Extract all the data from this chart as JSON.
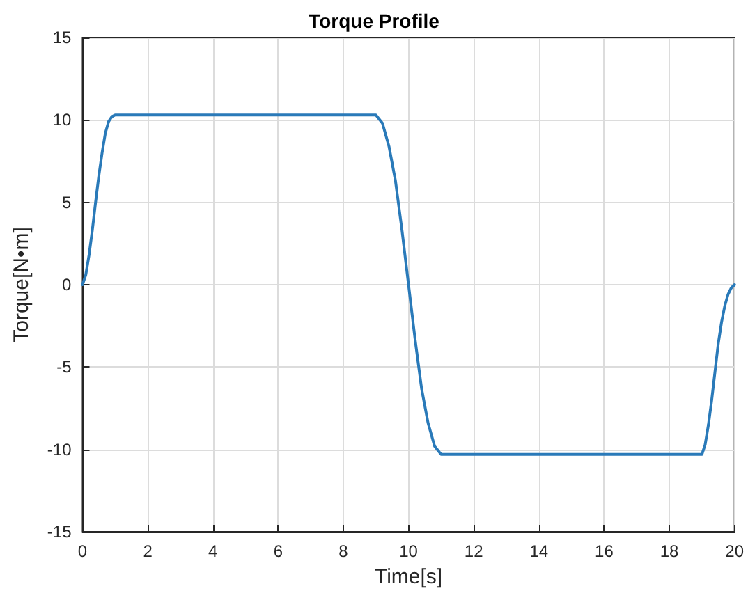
{
  "chart_data": {
    "type": "line",
    "title": "Torque Profile",
    "xlabel": "Time[s]",
    "ylabel": "Torque[N•m]",
    "series": [
      {
        "color": "#2a7ab9",
        "x": [
          0,
          0.1,
          0.2,
          0.3,
          0.4,
          0.5,
          0.6,
          0.7,
          0.8,
          0.9,
          1,
          9,
          9.2,
          9.4,
          9.6,
          9.8,
          10,
          10.2,
          10.4,
          10.6,
          10.8,
          11,
          19,
          19.1,
          19.2,
          19.3,
          19.4,
          19.5,
          19.6,
          19.7,
          19.8,
          19.9,
          20
        ],
        "values": [
          0,
          0.6,
          1.8,
          3.3,
          5,
          6.6,
          8,
          9.2,
          9.9,
          10.2,
          10.3,
          10.3,
          9.8,
          8.4,
          6.3,
          3.3,
          0,
          -3.3,
          -6.3,
          -8.4,
          -9.8,
          -10.3,
          -10.3,
          -9.7,
          -8.5,
          -7,
          -5.3,
          -3.6,
          -2.3,
          -1.3,
          -0.6,
          -0.2,
          0
        ]
      }
    ],
    "xlim": [
      0,
      20
    ],
    "xticks": [
      0,
      2,
      4,
      6,
      8,
      10,
      12,
      14,
      16,
      18,
      20
    ],
    "ylim": [
      -15,
      15
    ],
    "yticks": [
      -15,
      -10,
      -5,
      0,
      5,
      10,
      15
    ],
    "grid": true,
    "marker": "none",
    "line_style": "solid"
  }
}
